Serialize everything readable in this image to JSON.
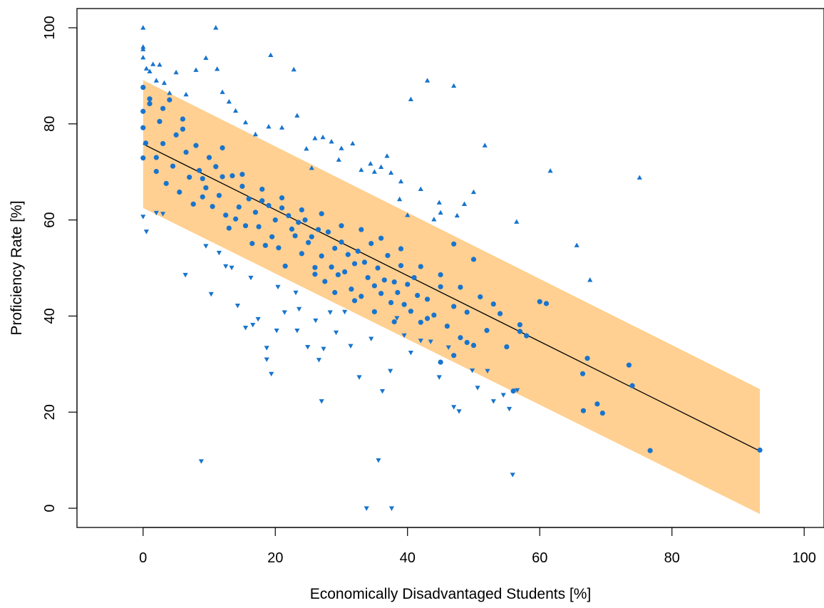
{
  "chart_data": {
    "type": "scatter",
    "title": "",
    "xlabel": "Economically Disadvantaged Students [%]",
    "ylabel": "Proficiency Rate [%]",
    "xlim": [
      -10,
      103
    ],
    "ylim": [
      -4,
      104
    ],
    "x_ticks": [
      0,
      20,
      40,
      60,
      80,
      100
    ],
    "y_ticks": [
      0,
      20,
      40,
      60,
      80,
      100
    ],
    "grid": false,
    "legend": "none",
    "colors": {
      "points": "#1874cd",
      "band": "#ffd092",
      "line": "#000000"
    },
    "fit_line": {
      "x": [
        0,
        93.3
      ],
      "y": [
        75.8,
        11.9
      ]
    },
    "prediction_band": {
      "x": [
        0,
        93.3
      ],
      "upper": [
        89.1,
        24.8
      ],
      "lower": [
        62.5,
        -1.2
      ]
    },
    "series": [
      {
        "marker": "circle",
        "points": [
          [
            0,
            87.6
          ],
          [
            0,
            82.6
          ],
          [
            0,
            79.2
          ],
          [
            0,
            72.9
          ],
          [
            0.4,
            76.0
          ],
          [
            1,
            85.2
          ],
          [
            1,
            84.2
          ],
          [
            2,
            73.0
          ],
          [
            2,
            70.1
          ],
          [
            2.5,
            80.5
          ],
          [
            3,
            75.9
          ],
          [
            3.5,
            67.6
          ],
          [
            4,
            85.0
          ],
          [
            4.5,
            71.2
          ],
          [
            5,
            77.7
          ],
          [
            5.5,
            65.8
          ],
          [
            6,
            78.9
          ],
          [
            6.5,
            74.1
          ],
          [
            7,
            68.9
          ],
          [
            7.6,
            63.3
          ],
          [
            8,
            75.5
          ],
          [
            8.5,
            70.3
          ],
          [
            9,
            68.6
          ],
          [
            9.5,
            66.7
          ],
          [
            10,
            73.0
          ],
          [
            10.5,
            62.8
          ],
          [
            11,
            71.1
          ],
          [
            11.5,
            65.1
          ],
          [
            12,
            69.0
          ],
          [
            12.5,
            61.0
          ],
          [
            13,
            58.3
          ],
          [
            13.5,
            69.2
          ],
          [
            14,
            60.2
          ],
          [
            14.5,
            62.7
          ],
          [
            15,
            67.0
          ],
          [
            15.5,
            58.8
          ],
          [
            16,
            64.4
          ],
          [
            16.5,
            55.1
          ],
          [
            17,
            61.6
          ],
          [
            17.5,
            58.6
          ],
          [
            18,
            64.0
          ],
          [
            18.5,
            54.7
          ],
          [
            19,
            63.0
          ],
          [
            19.5,
            56.5
          ],
          [
            20,
            60.0
          ],
          [
            20.5,
            54.2
          ],
          [
            21,
            62.5
          ],
          [
            21.5,
            50.4
          ],
          [
            22,
            60.9
          ],
          [
            22.5,
            58.1
          ],
          [
            23,
            56.7
          ],
          [
            23.5,
            59.5
          ],
          [
            24,
            53.0
          ],
          [
            24.5,
            60.0
          ],
          [
            25,
            55.3
          ],
          [
            25.5,
            56.5
          ],
          [
            26,
            50.1
          ],
          [
            26.5,
            58.0
          ],
          [
            27,
            52.5
          ],
          [
            27.5,
            47.2
          ],
          [
            28,
            57.5
          ],
          [
            28.5,
            50.2
          ],
          [
            29,
            54.1
          ],
          [
            29.5,
            48.6
          ],
          [
            30,
            55.4
          ],
          [
            30.5,
            49.2
          ],
          [
            31,
            52.8
          ],
          [
            31.5,
            45.6
          ],
          [
            32,
            50.9
          ],
          [
            32.5,
            53.5
          ],
          [
            33,
            44.1
          ],
          [
            33.5,
            51.2
          ],
          [
            34,
            48.0
          ],
          [
            34.5,
            55.1
          ],
          [
            35,
            46.3
          ],
          [
            35.5,
            50.0
          ],
          [
            36,
            44.7
          ],
          [
            36.5,
            47.5
          ],
          [
            37,
            52.6
          ],
          [
            37.5,
            42.8
          ],
          [
            38,
            47.1
          ],
          [
            38.5,
            44.9
          ],
          [
            39,
            50.5
          ],
          [
            39.5,
            42.4
          ],
          [
            40,
            46.6
          ],
          [
            40.5,
            41.0
          ],
          [
            41,
            48.0
          ],
          [
            41.5,
            44.3
          ],
          [
            42,
            38.7
          ],
          [
            43,
            43.5
          ],
          [
            44,
            40.2
          ],
          [
            45,
            46.1
          ],
          [
            46,
            37.9
          ],
          [
            47,
            42.0
          ],
          [
            48,
            35.5
          ],
          [
            49,
            40.8
          ],
          [
            50,
            33.9
          ],
          [
            52,
            37.0
          ],
          [
            53,
            42.5
          ],
          [
            55,
            33.6
          ],
          [
            57,
            36.8
          ],
          [
            58,
            35.9
          ],
          [
            60,
            43.0
          ],
          [
            61,
            42.6
          ],
          [
            56,
            24.4
          ],
          [
            66.5,
            28.0
          ],
          [
            66.6,
            20.3
          ],
          [
            67.2,
            31.2
          ],
          [
            68.7,
            21.7
          ],
          [
            69.5,
            19.8
          ],
          [
            73.5,
            29.8
          ],
          [
            74,
            25.5
          ],
          [
            76.7,
            12.0
          ],
          [
            93.3,
            12.1
          ],
          [
            3,
            83.2
          ],
          [
            6,
            81.0
          ],
          [
            9,
            64.8
          ],
          [
            12,
            75.0
          ],
          [
            15,
            69.5
          ],
          [
            18,
            66.4
          ],
          [
            21,
            64.6
          ],
          [
            24,
            62.1
          ],
          [
            27,
            61.3
          ],
          [
            30,
            58.8
          ],
          [
            33,
            58.0
          ],
          [
            36,
            56.2
          ],
          [
            39,
            54.0
          ],
          [
            42,
            50.3
          ],
          [
            45,
            48.6
          ],
          [
            48,
            46.0
          ],
          [
            51,
            44.0
          ],
          [
            54,
            40.5
          ],
          [
            57,
            38.2
          ],
          [
            47,
            55.0
          ],
          [
            50,
            51.8
          ],
          [
            45,
            30.4
          ],
          [
            47,
            31.8
          ],
          [
            49,
            34.5
          ],
          [
            43,
            39.5
          ],
          [
            38,
            38.8
          ],
          [
            35,
            40.9
          ],
          [
            32,
            43.2
          ],
          [
            29,
            44.9
          ],
          [
            26,
            48.7
          ]
        ]
      },
      {
        "marker": "triangle-up",
        "points": [
          [
            0,
            100
          ],
          [
            0,
            96.0
          ],
          [
            0,
            95.5
          ],
          [
            0,
            93.8
          ],
          [
            0.5,
            91.5
          ],
          [
            1,
            90.9
          ],
          [
            1.5,
            92.4
          ],
          [
            2,
            89.0
          ],
          [
            2.5,
            92.3
          ],
          [
            3.2,
            88.5
          ],
          [
            4,
            86.4
          ],
          [
            5,
            90.7
          ],
          [
            6.5,
            86.1
          ],
          [
            8,
            91.2
          ],
          [
            9.5,
            93.7
          ],
          [
            11,
            100
          ],
          [
            11.2,
            91.4
          ],
          [
            12,
            86.6
          ],
          [
            13,
            84.6
          ],
          [
            14,
            82.7
          ],
          [
            15.5,
            80.3
          ],
          [
            17,
            77.8
          ],
          [
            19,
            79.4
          ],
          [
            19.3,
            94.3
          ],
          [
            21,
            79.2
          ],
          [
            22.8,
            91.3
          ],
          [
            23.3,
            81.7
          ],
          [
            24.7,
            74.8
          ],
          [
            26,
            77.0
          ],
          [
            27.2,
            77.2
          ],
          [
            28.5,
            76.3
          ],
          [
            30,
            74.9
          ],
          [
            31.7,
            75.9
          ],
          [
            33,
            70.4
          ],
          [
            34.4,
            71.7
          ],
          [
            35,
            70.0
          ],
          [
            36,
            71.0
          ],
          [
            37.5,
            69.8
          ],
          [
            39,
            68.0
          ],
          [
            40,
            61.0
          ],
          [
            40.5,
            85.1
          ],
          [
            42,
            66.4
          ],
          [
            43,
            89.0
          ],
          [
            44,
            60.1
          ],
          [
            45,
            61.5
          ],
          [
            47,
            87.9
          ],
          [
            47.5,
            60.9
          ],
          [
            50,
            65.8
          ],
          [
            51.7,
            75.5
          ],
          [
            56.5,
            59.6
          ],
          [
            61.6,
            70.2
          ],
          [
            65.6,
            54.7
          ],
          [
            67.6,
            47.5
          ],
          [
            75.1,
            68.8
          ],
          [
            36.9,
            73.3
          ],
          [
            38.8,
            64.3
          ],
          [
            44.8,
            63.6
          ],
          [
            48.6,
            63.3
          ],
          [
            29.6,
            72.5
          ],
          [
            25.5,
            70.8
          ]
        ]
      },
      {
        "marker": "triangle-down",
        "points": [
          [
            0,
            60.7
          ],
          [
            0.5,
            57.6
          ],
          [
            2,
            61.5
          ],
          [
            3,
            61.3
          ],
          [
            6.4,
            48.6
          ],
          [
            8.8,
            9.8
          ],
          [
            10.3,
            44.6
          ],
          [
            11.5,
            53.2
          ],
          [
            14.3,
            42.2
          ],
          [
            15.5,
            37.6
          ],
          [
            16.6,
            38.2
          ],
          [
            17.4,
            39.4
          ],
          [
            18.7,
            33.4
          ],
          [
            18.7,
            31.0
          ],
          [
            19.4,
            28.0
          ],
          [
            20.2,
            37.0
          ],
          [
            21.4,
            40.8
          ],
          [
            23.3,
            37.0
          ],
          [
            23.6,
            41.5
          ],
          [
            24.9,
            33.6
          ],
          [
            26.1,
            39.1
          ],
          [
            26.6,
            30.9
          ],
          [
            27.0,
            22.3
          ],
          [
            27.3,
            33.2
          ],
          [
            28.3,
            40.8
          ],
          [
            29.2,
            36.6
          ],
          [
            30.5,
            40.9
          ],
          [
            31.4,
            33.8
          ],
          [
            32.7,
            27.3
          ],
          [
            33.8,
            0
          ],
          [
            34.5,
            35.3
          ],
          [
            35.6,
            10.0
          ],
          [
            36.2,
            24.4
          ],
          [
            37.4,
            28.6
          ],
          [
            37.6,
            0
          ],
          [
            38.4,
            39.6
          ],
          [
            39.5,
            36.0
          ],
          [
            40.5,
            32.4
          ],
          [
            42.0,
            34.9
          ],
          [
            43.5,
            34.7
          ],
          [
            44.8,
            27.3
          ],
          [
            46.2,
            33.5
          ],
          [
            47.0,
            21.1
          ],
          [
            47.8,
            20.2
          ],
          [
            49.8,
            28.7
          ],
          [
            50.6,
            25.1
          ],
          [
            52.1,
            28.6
          ],
          [
            53.0,
            22.3
          ],
          [
            54.5,
            23.6
          ],
          [
            55.4,
            20.7
          ],
          [
            55.9,
            7.0
          ],
          [
            56.6,
            24.6
          ],
          [
            16.3,
            48.0
          ],
          [
            13.4,
            50.1
          ],
          [
            20.4,
            46.1
          ],
          [
            23.1,
            44.9
          ],
          [
            9.5,
            54.6
          ],
          [
            12.5,
            50.4
          ]
        ]
      }
    ]
  }
}
